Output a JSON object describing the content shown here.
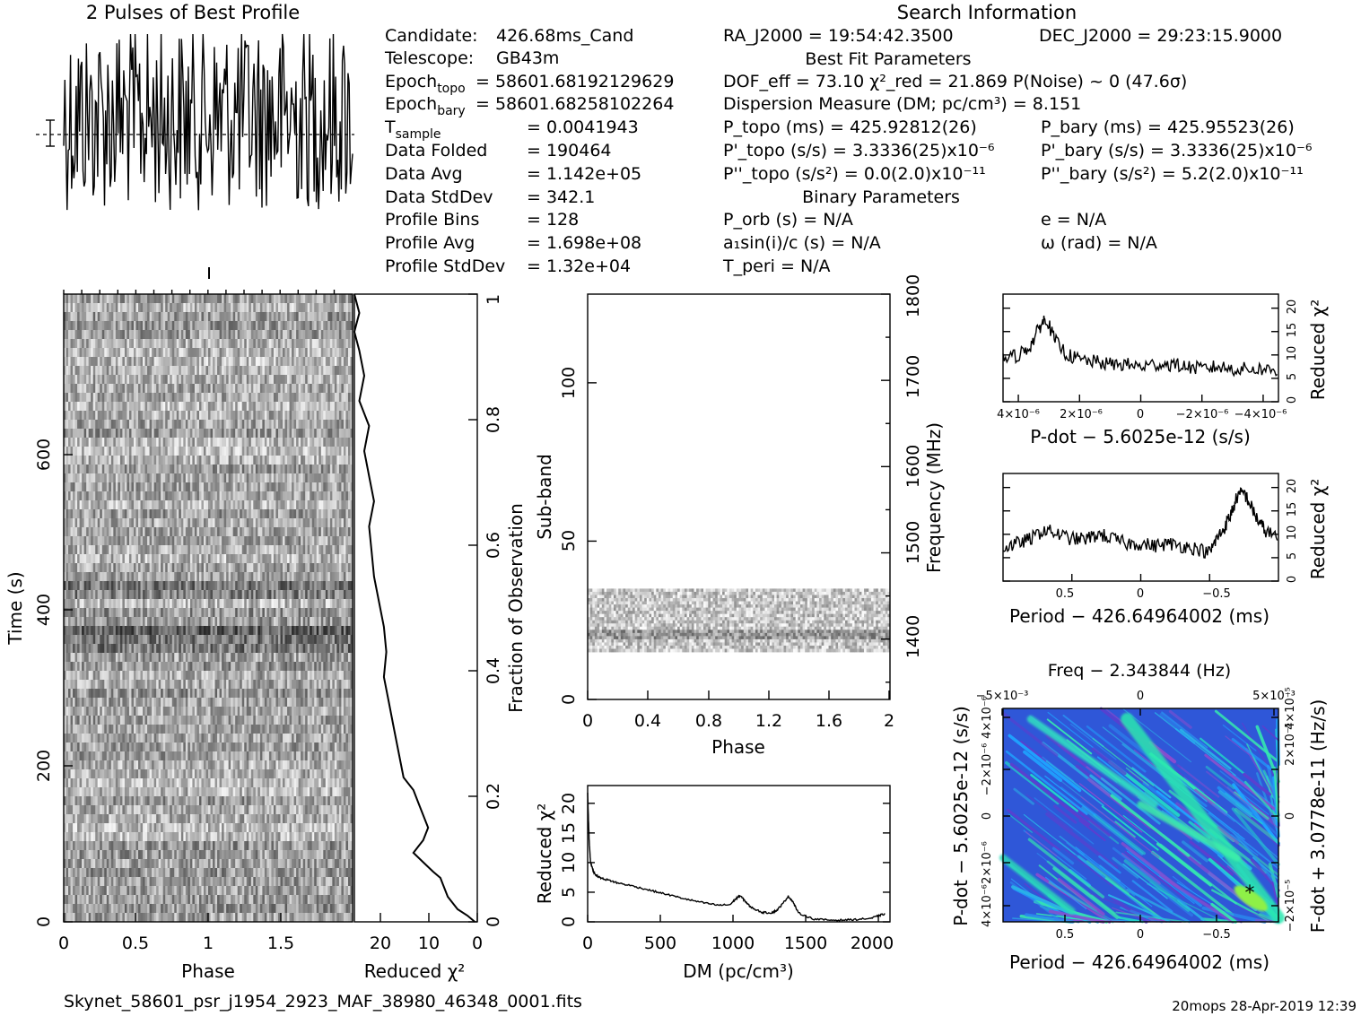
{
  "header": {
    "profile_title": "2 Pulses of Best Profile",
    "search_title": "Search Information",
    "best_fit_title": "Best Fit Parameters",
    "binary_title": "Binary Parameters"
  },
  "candidate_info": [
    {
      "label": "Candidate:",
      "value": "426.68ms_Cand"
    },
    {
      "label": "Telescope:",
      "value": "GB43m"
    },
    {
      "label": "Epoch_topo",
      "value": "= 58601.68192129629"
    },
    {
      "label": "Epoch_bary",
      "value": "= 58601.68258102264"
    },
    {
      "label": "T_sample",
      "value": "=  0.0041943"
    },
    {
      "label": "Data Folded",
      "value": "=  190464"
    },
    {
      "label": "Data Avg",
      "value": "=  1.142e+05"
    },
    {
      "label": "Data StdDev",
      "value": "=  342.1"
    },
    {
      "label": "Profile Bins",
      "value": "=  128"
    },
    {
      "label": "Profile Avg",
      "value": "=  1.698e+08"
    },
    {
      "label": "Profile StdDev",
      "value": "=  1.32e+04"
    }
  ],
  "search_info": {
    "ra": "RA_J2000 = 19:54:42.3500",
    "dec": "DEC_J2000 = 29:23:15.9000",
    "dof": "DOF_eff = 73.10  χ²_red = 21.869  P(Noise) ~ 0   (47.6σ)",
    "dm": "Dispersion Measure (DM; pc/cm³) = 8.151",
    "p_topo": "P_topo (ms) =  425.92812(26)",
    "p_bary": "P_bary (ms) =  425.95523(26)",
    "pd_topo": "P'_topo (s/s) =  3.3336(25)x10⁻⁶",
    "pd_bary": "P'_bary (s/s) =  3.3336(25)x10⁻⁶",
    "pdd_topo": "P''_topo (s/s²) = 0.0(2.0)x10⁻¹¹",
    "pdd_bary": "P''_bary (s/s²) =  5.2(2.0)x10⁻¹¹",
    "p_orb": "P_orb (s) = N/A",
    "e": "e = N/A",
    "a1": "a₁sin(i)/c (s) = N/A",
    "omega": "ω (rad) = N/A",
    "t_peri": "T_peri = N/A"
  },
  "footer": {
    "filename": "Skynet_58601_psr_j1954_2923_MAF_38980_46348_0001.fits",
    "stamp": "20mops 28-Apr-2019 12:39"
  },
  "chart_data": [
    {
      "id": "profile",
      "type": "line",
      "title": "2 Pulses of Best Profile",
      "description_note": "",
      "n_points": 256,
      "x_range": [
        0,
        2
      ]
    },
    {
      "id": "time_phase",
      "type": "heatmap",
      "xlabel": "Phase",
      "ylabel": "Time (s)",
      "xlim": [
        0,
        2
      ],
      "ylim": [
        0,
        760
      ],
      "x_ticks": [
        "0",
        "0.5",
        "1",
        "1.5"
      ],
      "y_ticks": [
        "0",
        "200",
        "400",
        "600"
      ],
      "right_label": "Fraction of Observation",
      "right_ticks": [
        "0",
        "0.2",
        "0.4",
        "0.6",
        "0.8",
        "1"
      ]
    },
    {
      "id": "time_chi2",
      "type": "line",
      "xlabel": "Reduced χ²",
      "x_ticks": [
        "20",
        "10",
        "0"
      ],
      "xlim": [
        25,
        0
      ],
      "x": [
        0.5,
        2,
        4,
        6,
        7,
        7.5,
        9,
        11,
        13,
        12,
        11,
        10,
        11,
        12,
        13,
        15,
        16,
        17,
        18,
        19,
        18.5,
        19,
        20,
        21,
        21.5,
        22,
        21,
        22,
        23,
        22,
        24,
        23,
        24,
        25,
        24,
        25
      ],
      "y": [
        0,
        0.01,
        0.02,
        0.04,
        0.06,
        0.07,
        0.08,
        0.095,
        0.11,
        0.12,
        0.13,
        0.15,
        0.17,
        0.19,
        0.21,
        0.23,
        0.27,
        0.31,
        0.35,
        0.39,
        0.43,
        0.47,
        0.51,
        0.55,
        0.59,
        0.63,
        0.67,
        0.71,
        0.75,
        0.79,
        0.83,
        0.87,
        0.91,
        0.94,
        0.97,
        1.0
      ]
    },
    {
      "id": "subband_phase",
      "type": "heatmap",
      "xlabel": "Phase",
      "ylabel": "Sub-band",
      "xlim": [
        0,
        2
      ],
      "ylim": [
        0,
        128
      ],
      "x_ticks": [
        "0",
        "0.4",
        "0.8",
        "1.2",
        "1.6",
        "2"
      ],
      "y_ticks": [
        "0",
        "50",
        "100"
      ],
      "right_label": "Frequency (MHz)",
      "right_ticks": [
        "1400",
        "1500",
        "1600",
        "1700",
        "1800"
      ],
      "right_lim": [
        1330,
        1800
      ],
      "signal_band": [
        15,
        35
      ]
    },
    {
      "id": "dm_chi2",
      "type": "line",
      "xlabel": "DM (pc/cm³)",
      "ylabel": "Reduced χ²",
      "xlim": [
        0,
        2080
      ],
      "ylim": [
        0,
        23
      ],
      "x_ticks": [
        "0",
        "500",
        "1000",
        "1500",
        "2000"
      ],
      "y_ticks": [
        "0",
        "5",
        "10",
        "15",
        "20"
      ],
      "x": [
        0,
        10,
        20,
        40,
        60,
        100,
        150,
        200,
        300,
        400,
        500,
        600,
        700,
        800,
        900,
        980,
        1020,
        1050,
        1080,
        1120,
        1200,
        1260,
        1300,
        1340,
        1380,
        1410,
        1450,
        1550,
        1650,
        1750,
        1850,
        1950,
        2000,
        2050
      ],
      "y": [
        21.8,
        14,
        10,
        8.5,
        7.8,
        7.3,
        7.0,
        6.6,
        6.1,
        5.5,
        4.9,
        4.3,
        3.7,
        3.2,
        2.8,
        2.9,
        3.9,
        4.4,
        3.6,
        2.5,
        1.6,
        1.5,
        1.9,
        3.0,
        4.3,
        3.5,
        1.5,
        0.5,
        0.3,
        0.3,
        0.4,
        0.6,
        1.0,
        1.4
      ]
    },
    {
      "id": "pdot_chi2",
      "type": "line",
      "xlabel": "P-dot − 5.6025e-12 (s/s)",
      "ylabel": "Reduced χ²",
      "xlim": [
        4.5e-06,
        -4.5e-06
      ],
      "ylim": [
        0,
        23
      ],
      "x_ticks": [
        "4×10⁻⁶",
        "2×10⁻⁶",
        "0",
        "−2×10⁻⁶",
        "−4×10⁻⁶"
      ],
      "y_ticks": [
        "0",
        "5",
        "10",
        "15",
        "20"
      ],
      "x": [
        4.5e-06,
        4e-06,
        3.6e-06,
        3.3e-06,
        3.1e-06,
        2.8e-06,
        2.4e-06,
        2e-06,
        1.5e-06,
        1e-06,
        5e-07,
        0,
        -5e-07,
        -1e-06,
        -1.5e-06,
        -2e-06,
        -2.5e-06,
        -3e-06,
        -3.5e-06,
        -4e-06,
        -4.5e-06
      ],
      "y": [
        9,
        10,
        12,
        16,
        18,
        13,
        10,
        9,
        8.5,
        8,
        8,
        7.5,
        8,
        8,
        7.5,
        7,
        7.5,
        7,
        7,
        7,
        6.5
      ]
    },
    {
      "id": "period_chi2",
      "type": "line",
      "xlabel": "Period − 426.64964002 (ms)",
      "ylabel": "Reduced χ²",
      "xlim": [
        1.0,
        -1.0
      ],
      "ylim": [
        0,
        23
      ],
      "x_ticks": [
        "0.5",
        "0",
        "−0.5"
      ],
      "y_ticks": [
        "0",
        "5",
        "10",
        "15",
        "20"
      ],
      "x": [
        1.0,
        0.9,
        0.8,
        0.7,
        0.6,
        0.5,
        0.4,
        0.3,
        0.2,
        0.1,
        0.0,
        -0.1,
        -0.2,
        -0.3,
        -0.4,
        -0.5,
        -0.55,
        -0.6,
        -0.65,
        -0.7,
        -0.75,
        -0.8,
        -0.85,
        -0.9,
        -1.0
      ],
      "y": [
        7,
        8,
        9,
        11,
        10,
        9,
        9,
        10,
        9,
        8,
        8,
        7.5,
        8,
        7.5,
        7,
        6,
        9,
        11,
        14,
        18,
        19,
        16,
        13,
        11,
        9
      ]
    },
    {
      "id": "period_pdot",
      "type": "heatmap",
      "title": "Freq − 2.343844 (Hz)",
      "xlabel": "Period − 426.64964002 (ms)",
      "ylabel": "P-dot − 5.6025e-12 (s/s)",
      "right_label": "F-dot + 3.0778e-11 (Hz/s)",
      "x_ticks": [
        "0.5",
        "0",
        "−0.5"
      ],
      "top_ticks": [
        "−5×10⁻³",
        "0",
        "5×10⁻³"
      ],
      "y_ticks": [
        "4×10⁻⁶",
        "−2×10⁻⁶",
        "0",
        "2×10⁻⁶",
        "4×10⁻⁶"
      ],
      "right_ticks": [
        "−2×10⁻⁵",
        "0",
        "2×10⁻⁵",
        "4×10⁻⁵"
      ],
      "best": {
        "period": -0.72,
        "pdot": -3.3e-06
      }
    }
  ]
}
